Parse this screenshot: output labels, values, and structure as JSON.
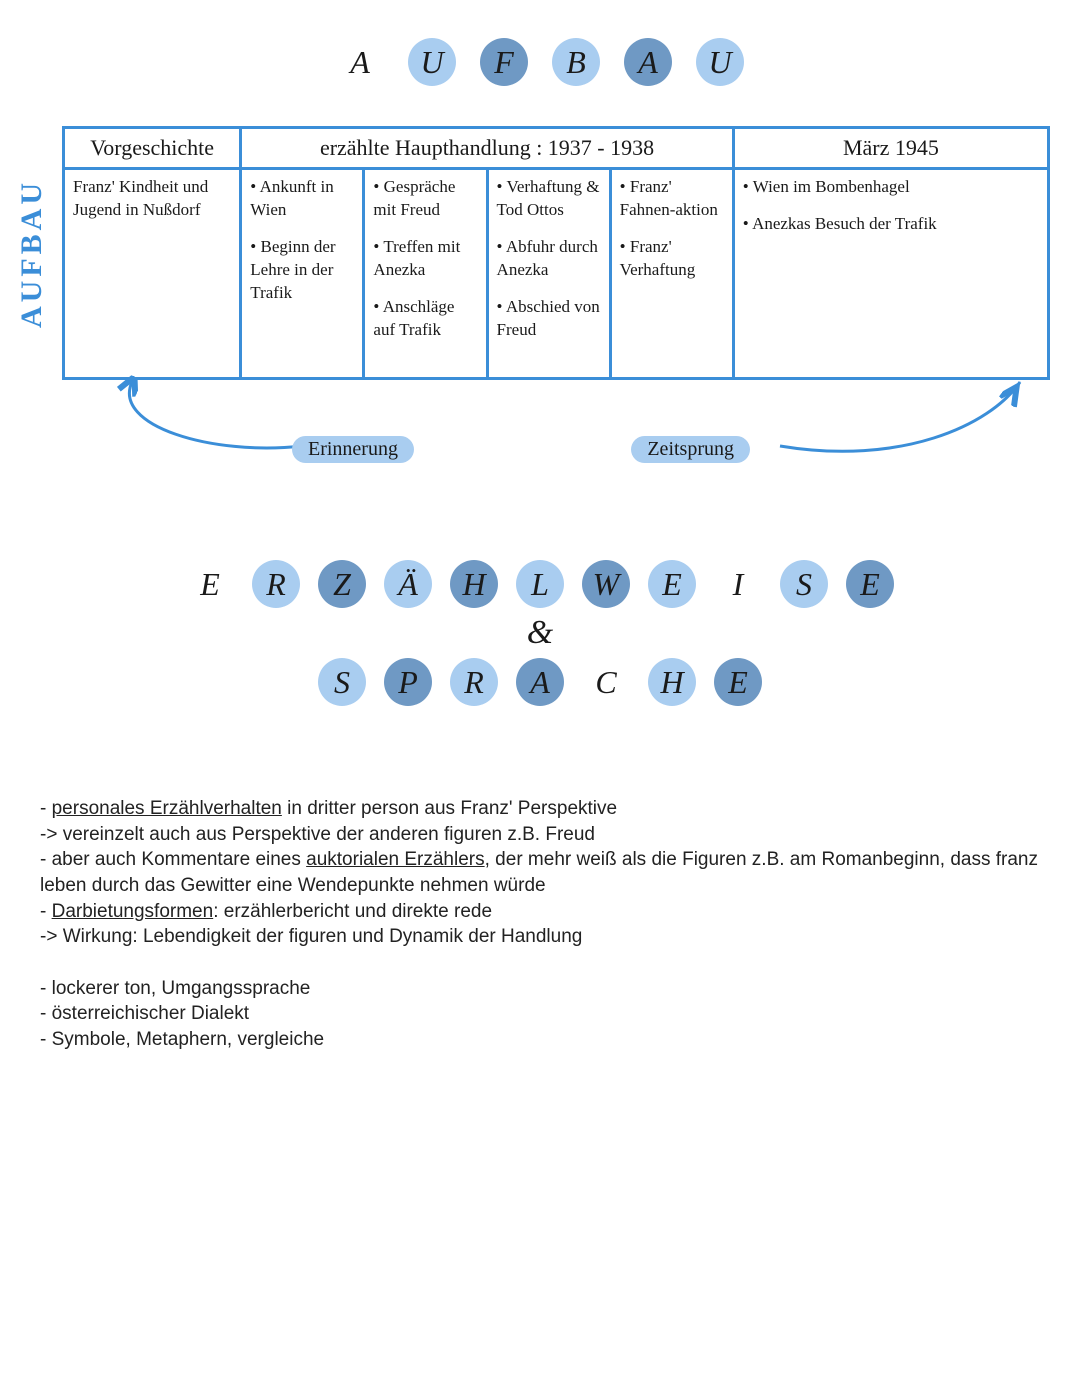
{
  "colors": {
    "blue_border": "#3b8ed8",
    "circle_light": "#a9cdf0",
    "circle_dark": "#6f99c4",
    "pill_bg": "#a9cdf0",
    "side_label": "#3b8ed8",
    "text": "#1a1a1a"
  },
  "title1": {
    "letters": [
      "A",
      "U",
      "F",
      "B",
      "A",
      "U"
    ],
    "bg_pattern": [
      "none",
      "light",
      "dark",
      "light",
      "dark",
      "light"
    ]
  },
  "side_label": "AUFBAU",
  "table": {
    "col_widths_pct": [
      18,
      12.5,
      12.5,
      12.5,
      12.5,
      32
    ],
    "headers": [
      {
        "text": "Vorgeschichte",
        "span": 1
      },
      {
        "text": "erzählte Haupthandlung : 1937 - 1938",
        "span": 4
      },
      {
        "text": "März 1945",
        "span": 1
      }
    ],
    "cells": [
      {
        "kind": "plain",
        "text": "Franz' Kindheit und Jugend in Nußdorf"
      },
      {
        "kind": "list",
        "items": [
          "Ankunft in Wien",
          "Beginn der Lehre in der Trafik"
        ]
      },
      {
        "kind": "list",
        "items": [
          "Gespräche mit Freud",
          "Treffen mit Anezka",
          "Anschläge auf Trafik"
        ]
      },
      {
        "kind": "list",
        "items": [
          "Verhaftung & Tod Ottos",
          "Abfuhr durch Anezka",
          "Abschied von Freud"
        ]
      },
      {
        "kind": "list",
        "items": [
          "Franz' Fahnen-aktion",
          "Franz' Verhaftung"
        ]
      },
      {
        "kind": "list",
        "items": [
          "Wien im Bombenhagel",
          "Anezkas Besuch der Trafik"
        ]
      }
    ]
  },
  "under_labels": {
    "left": "Erinnerung",
    "right": "Zeitsprung"
  },
  "title2": {
    "row1_letters": [
      "E",
      "R",
      "Z",
      "Ä",
      "H",
      "L",
      "W",
      "E",
      "I",
      "S",
      "E"
    ],
    "row1_bg": [
      "none",
      "light",
      "dark",
      "light",
      "dark",
      "light",
      "dark",
      "light",
      "none",
      "light",
      "dark"
    ],
    "amp": "&",
    "row2_letters": [
      "S",
      "P",
      "R",
      "A",
      "C",
      "H",
      "E"
    ],
    "row2_bg": [
      "light",
      "dark",
      "light",
      "dark",
      "none",
      "light",
      "dark"
    ]
  },
  "notes_block1": [
    {
      "text": "- ",
      "u": null,
      "rest": "personales Erzählverhalten",
      "after": " in dritter person aus Franz' Perspektive"
    },
    {
      "plain": "-> vereinzelt auch aus Perspektive der anderen figuren z.B. Freud"
    },
    {
      "text": "- aber auch Kommentare eines ",
      "u": "auktorialen Erzählers",
      "after": ", der mehr weiß als die Figuren z.B. am Romanbeginn, dass franz leben durch das Gewitter eine Wendepunkte nehmen würde"
    },
    {
      "text": "- ",
      "u": null,
      "rest": "Darbietungsformen",
      "after": ": erzählerbericht und direkte rede"
    },
    {
      "plain": "-> Wirkung: Lebendigkeit der figuren und Dynamik der Handlung"
    }
  ],
  "notes_block2": [
    "- lockerer ton, Umgangssprache",
    "- österreichischer Dialekt",
    "- Symbole, Metaphern, vergleiche"
  ]
}
